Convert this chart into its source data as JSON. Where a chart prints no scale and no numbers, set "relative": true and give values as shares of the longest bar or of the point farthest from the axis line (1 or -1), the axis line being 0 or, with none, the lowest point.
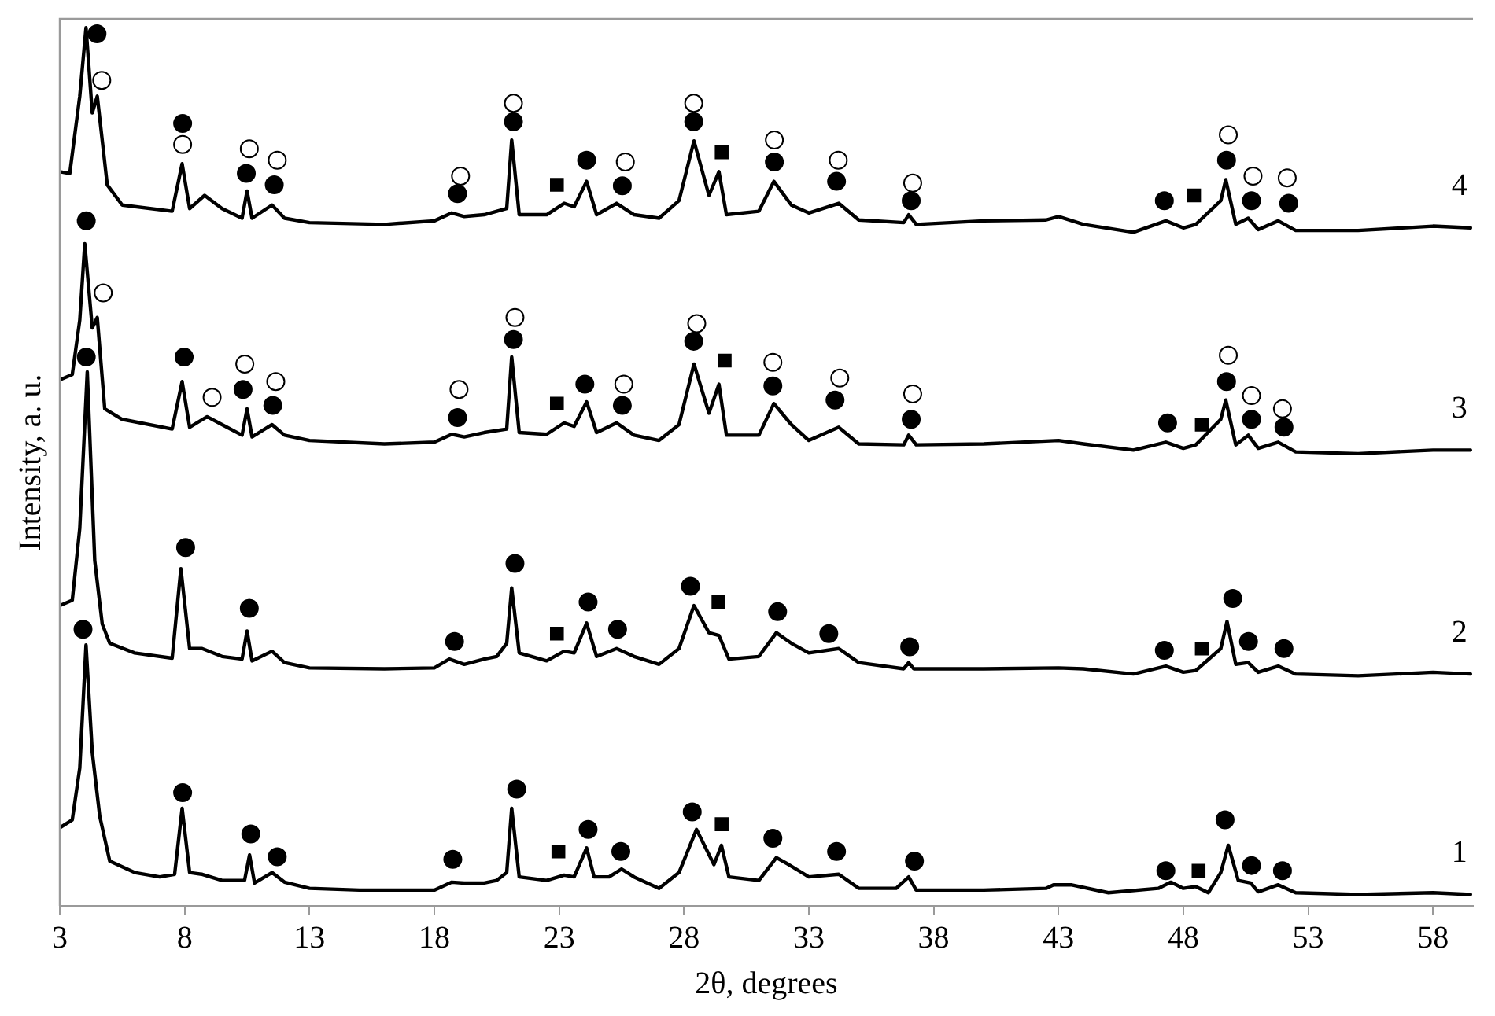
{
  "chart_data": {
    "type": "line",
    "relative": true,
    "xlabel": "2θ, degrees",
    "ylabel": "Intensity, a. u.",
    "xlim": [
      3,
      59.6
    ],
    "xticks": [
      3,
      8,
      13,
      18,
      23,
      28,
      33,
      38,
      43,
      48,
      53,
      58
    ],
    "grid": false,
    "legend": false,
    "marker": "none",
    "line_style": "solid",
    "series": [
      {
        "name": "1",
        "color": "#000000",
        "x": [
          3.0,
          3.5,
          3.8,
          4.05,
          4.3,
          4.6,
          5.0,
          6,
          7,
          7.6,
          7.9,
          8.2,
          8.7,
          9.5,
          10.4,
          10.6,
          10.8,
          11.5,
          12,
          13,
          15,
          18,
          18.7,
          19.2,
          20,
          20.5,
          20.9,
          21.1,
          21.4,
          22.5,
          23.2,
          23.6,
          24.1,
          24.4,
          25,
          25.5,
          26,
          27,
          27.8,
          28.5,
          29.2,
          29.5,
          29.8,
          31,
          31.7,
          32.2,
          33,
          34.2,
          35,
          36.5,
          37,
          37.3,
          40,
          42.5,
          42.8,
          43.5,
          45,
          47,
          47.5,
          48,
          48.5,
          49,
          49.5,
          49.8,
          50.2,
          50.7,
          51,
          51.8,
          52.5,
          55,
          58,
          59.5
        ],
        "values": [
          0.089,
          0.098,
          0.157,
          0.297,
          0.175,
          0.102,
          0.051,
          0.038,
          0.033,
          0.036,
          0.111,
          0.038,
          0.036,
          0.029,
          0.029,
          0.058,
          0.026,
          0.038,
          0.027,
          0.02,
          0.018,
          0.018,
          0.027,
          0.026,
          0.026,
          0.029,
          0.038,
          0.111,
          0.033,
          0.029,
          0.035,
          0.033,
          0.066,
          0.033,
          0.033,
          0.042,
          0.033,
          0.02,
          0.038,
          0.087,
          0.047,
          0.069,
          0.033,
          0.029,
          0.055,
          0.047,
          0.033,
          0.036,
          0.02,
          0.02,
          0.033,
          0.018,
          0.018,
          0.02,
          0.024,
          0.024,
          0.015,
          0.02,
          0.027,
          0.02,
          0.022,
          0.015,
          0.038,
          0.069,
          0.029,
          0.026,
          0.016,
          0.024,
          0.015,
          0.013,
          0.015,
          0.013
        ]
      },
      {
        "name": "2",
        "color": "#000000",
        "x": [
          3.0,
          3.5,
          3.8,
          4.1,
          4.4,
          4.7,
          5,
          6,
          7.5,
          7.85,
          8.2,
          8.7,
          9.5,
          10.3,
          10.5,
          10.7,
          11.5,
          12,
          13,
          16,
          18,
          18.6,
          19.2,
          20,
          20.5,
          20.9,
          21.1,
          21.4,
          22.5,
          23.2,
          23.6,
          24.1,
          24.5,
          25.3,
          26,
          27,
          27.8,
          28.4,
          29,
          29.4,
          29.8,
          31,
          31.7,
          32.3,
          33,
          34.2,
          35,
          36.8,
          37,
          37.2,
          40,
          43,
          44,
          46,
          47.3,
          48,
          48.5,
          49.5,
          49.75,
          50.1,
          50.6,
          51,
          51.8,
          52.5,
          55,
          58,
          59.5
        ],
        "values": [
          0.342,
          0.348,
          0.43,
          0.608,
          0.393,
          0.321,
          0.299,
          0.288,
          0.282,
          0.384,
          0.293,
          0.293,
          0.284,
          0.281,
          0.313,
          0.279,
          0.29,
          0.277,
          0.271,
          0.27,
          0.271,
          0.281,
          0.275,
          0.281,
          0.284,
          0.299,
          0.362,
          0.288,
          0.279,
          0.29,
          0.288,
          0.322,
          0.284,
          0.293,
          0.284,
          0.275,
          0.293,
          0.342,
          0.311,
          0.308,
          0.281,
          0.284,
          0.311,
          0.299,
          0.288,
          0.293,
          0.277,
          0.27,
          0.277,
          0.27,
          0.27,
          0.271,
          0.27,
          0.264,
          0.273,
          0.266,
          0.268,
          0.293,
          0.324,
          0.275,
          0.277,
          0.266,
          0.273,
          0.264,
          0.262,
          0.266,
          0.264
        ]
      },
      {
        "name": "3",
        "color": "#000000",
        "x": [
          3.0,
          3.5,
          3.8,
          4.0,
          4.3,
          4.5,
          4.8,
          5.5,
          7.5,
          7.9,
          8.2,
          8.9,
          9.5,
          10.3,
          10.5,
          10.7,
          11.5,
          12,
          13,
          16,
          18,
          18.7,
          19.2,
          20,
          20.9,
          21.1,
          21.4,
          22.5,
          23.2,
          23.6,
          24.1,
          24.5,
          25.3,
          26,
          27,
          27.8,
          28.4,
          29,
          29.4,
          29.7,
          31,
          31.6,
          32.3,
          33,
          34.2,
          35,
          36.8,
          37,
          37.3,
          40,
          43,
          44,
          46,
          47.3,
          48,
          48.5,
          49.5,
          49.7,
          50.1,
          50.6,
          51,
          51.8,
          52.5,
          55,
          58,
          59.5
        ],
        "values": [
          0.599,
          0.605,
          0.667,
          0.754,
          0.658,
          0.67,
          0.566,
          0.554,
          0.543,
          0.597,
          0.545,
          0.557,
          0.548,
          0.536,
          0.566,
          0.534,
          0.548,
          0.536,
          0.53,
          0.526,
          0.528,
          0.537,
          0.534,
          0.539,
          0.543,
          0.625,
          0.539,
          0.537,
          0.55,
          0.546,
          0.574,
          0.539,
          0.55,
          0.536,
          0.53,
          0.548,
          0.617,
          0.561,
          0.594,
          0.536,
          0.536,
          0.572,
          0.548,
          0.53,
          0.545,
          0.526,
          0.525,
          0.536,
          0.525,
          0.526,
          0.53,
          0.526,
          0.519,
          0.528,
          0.521,
          0.525,
          0.554,
          0.576,
          0.525,
          0.536,
          0.521,
          0.528,
          0.517,
          0.515,
          0.519,
          0.519
        ]
      },
      {
        "name": "4",
        "color": "#000000",
        "x": [
          3.0,
          3.4,
          3.8,
          4.05,
          4.3,
          4.5,
          4.9,
          5.5,
          7.5,
          7.9,
          8.2,
          8.8,
          9.5,
          10.3,
          10.5,
          10.7,
          11.5,
          12,
          13,
          16,
          18,
          18.7,
          19.2,
          20,
          20.9,
          21.1,
          21.4,
          22.5,
          23.2,
          23.6,
          24.1,
          24.5,
          25.3,
          26,
          27,
          27.8,
          28.4,
          29,
          29.4,
          29.7,
          31,
          31.6,
          32.3,
          33,
          34.2,
          35,
          36.8,
          37,
          37.3,
          40,
          42.5,
          43,
          44,
          46,
          47.3,
          48,
          48.5,
          49.5,
          49.7,
          50.1,
          50.6,
          51,
          51.8,
          52.5,
          55,
          58,
          59.5
        ],
        "values": [
          0.836,
          0.834,
          0.922,
          1.0,
          0.903,
          0.922,
          0.821,
          0.798,
          0.791,
          0.845,
          0.794,
          0.809,
          0.794,
          0.783,
          0.814,
          0.783,
          0.798,
          0.783,
          0.778,
          0.776,
          0.78,
          0.789,
          0.785,
          0.787,
          0.794,
          0.872,
          0.787,
          0.787,
          0.8,
          0.796,
          0.825,
          0.787,
          0.8,
          0.787,
          0.783,
          0.803,
          0.871,
          0.809,
          0.836,
          0.787,
          0.791,
          0.825,
          0.798,
          0.789,
          0.8,
          0.781,
          0.778,
          0.787,
          0.776,
          0.78,
          0.781,
          0.785,
          0.776,
          0.767,
          0.78,
          0.772,
          0.776,
          0.803,
          0.827,
          0.776,
          0.783,
          0.77,
          0.78,
          0.769,
          0.769,
          0.774,
          0.772
        ]
      },
      {
        "type": "scatter",
        "marker": "circle",
        "color": "#000000",
        "x": [
          4.49,
          7.92,
          10.47,
          11.59,
          18.93,
          21.17,
          24.1,
          25.53,
          28.39,
          31.62,
          34.11,
          37.1,
          47.24,
          49.73,
          50.73,
          52.22,
          4.06,
          7.98,
          10.34,
          11.53,
          18.93,
          21.17,
          24.03,
          25.53,
          28.39,
          31.56,
          34.05,
          37.1,
          47.37,
          49.73,
          50.73,
          52.03,
          4.06,
          8.04,
          10.59,
          18.81,
          21.23,
          24.16,
          25.34,
          28.26,
          31.75,
          33.8,
          37.04,
          47.24,
          49.98,
          50.61,
          52.03,
          3.93,
          7.92,
          10.65,
          11.71,
          18.74,
          21.3,
          24.16,
          25.47,
          28.33,
          31.56,
          34.11,
          37.23,
          47.3,
          49.67,
          50.73,
          51.97
        ],
        "values": [
          0.993,
          0.891,
          0.834,
          0.821,
          0.811,
          0.893,
          0.849,
          0.82,
          0.893,
          0.847,
          0.825,
          0.803,
          0.803,
          0.849,
          0.803,
          0.8,
          0.78,
          0.625,
          0.588,
          0.57,
          0.556,
          0.645,
          0.594,
          0.57,
          0.643,
          0.592,
          0.576,
          0.554,
          0.55,
          0.597,
          0.554,
          0.545,
          0.625,
          0.408,
          0.339,
          0.301,
          0.39,
          0.346,
          0.315,
          0.364,
          0.335,
          0.31,
          0.295,
          0.291,
          0.35,
          0.301,
          0.293,
          0.315,
          0.129,
          0.082,
          0.056,
          0.053,
          0.133,
          0.087,
          0.062,
          0.107,
          0.077,
          0.062,
          0.051,
          0.04,
          0.098,
          0.046,
          0.04
        ]
      },
      {
        "type": "scatter",
        "marker": "circle",
        "color": "#ffffff",
        "x": [
          4.68,
          7.92,
          10.59,
          11.71,
          19.05,
          21.17,
          25.65,
          28.39,
          31.62,
          34.18,
          37.16,
          49.8,
          50.79,
          52.16,
          4.74,
          9.1,
          10.41,
          11.65,
          18.99,
          21.23,
          25.59,
          28.51,
          31.56,
          34.24,
          37.16,
          49.8,
          50.73,
          51.97
        ],
        "values": [
          0.94,
          0.867,
          0.862,
          0.849,
          0.831,
          0.914,
          0.847,
          0.914,
          0.872,
          0.849,
          0.823,
          0.878,
          0.831,
          0.829,
          0.698,
          0.579,
          0.617,
          0.597,
          0.588,
          0.67,
          0.594,
          0.663,
          0.619,
          0.601,
          0.583,
          0.627,
          0.581,
          0.566
        ]
      },
      {
        "type": "scatter",
        "marker": "square",
        "color": "#000000",
        "x": [
          22.91,
          29.51,
          48.43,
          22.91,
          29.63,
          48.74,
          22.91,
          29.38,
          48.74,
          22.97,
          29.51,
          48.61
        ],
        "values": [
          0.821,
          0.858,
          0.809,
          0.572,
          0.621,
          0.548,
          0.31,
          0.346,
          0.293,
          0.062,
          0.093,
          0.04
        ]
      }
    ]
  }
}
